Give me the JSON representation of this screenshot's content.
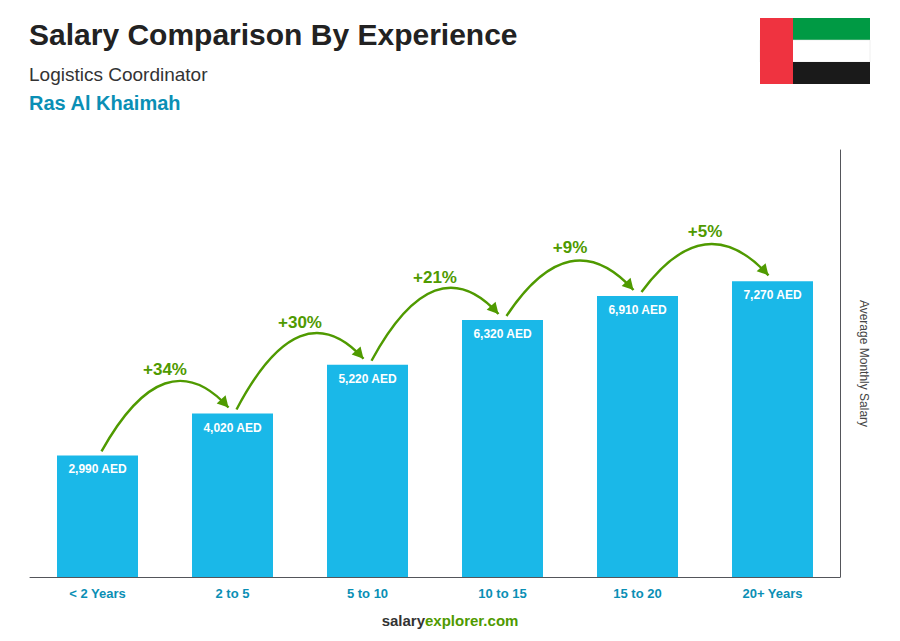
{
  "chart_data": {
    "type": "bar",
    "title": "Salary Comparison By Experience",
    "subtitle": "Logistics Coordinator",
    "location": "Ras Al Khaimah",
    "ylabel": "Average Monthly Salary",
    "categories": [
      "< 2 Years",
      "2 to 5",
      "5 to 10",
      "10 to 15",
      "15 to 20",
      "20+ Years"
    ],
    "values": [
      2990,
      4020,
      5220,
      6320,
      6910,
      7270
    ],
    "value_labels": [
      "2,990 AED",
      "4,020 AED",
      "5,220 AED",
      "6,320 AED",
      "6,910 AED",
      "7,270 AED"
    ],
    "data_labels": true,
    "annotations": [
      "+34%",
      "+30%",
      "+21%",
      "+9%",
      "+5%"
    ],
    "footer": [
      "salary",
      "explorer.com"
    ],
    "color": "#1ab8e8",
    "ylim": [
      0,
      10500
    ],
    "yticks": [],
    "grid": false,
    "tick_labels": "x"
  }
}
